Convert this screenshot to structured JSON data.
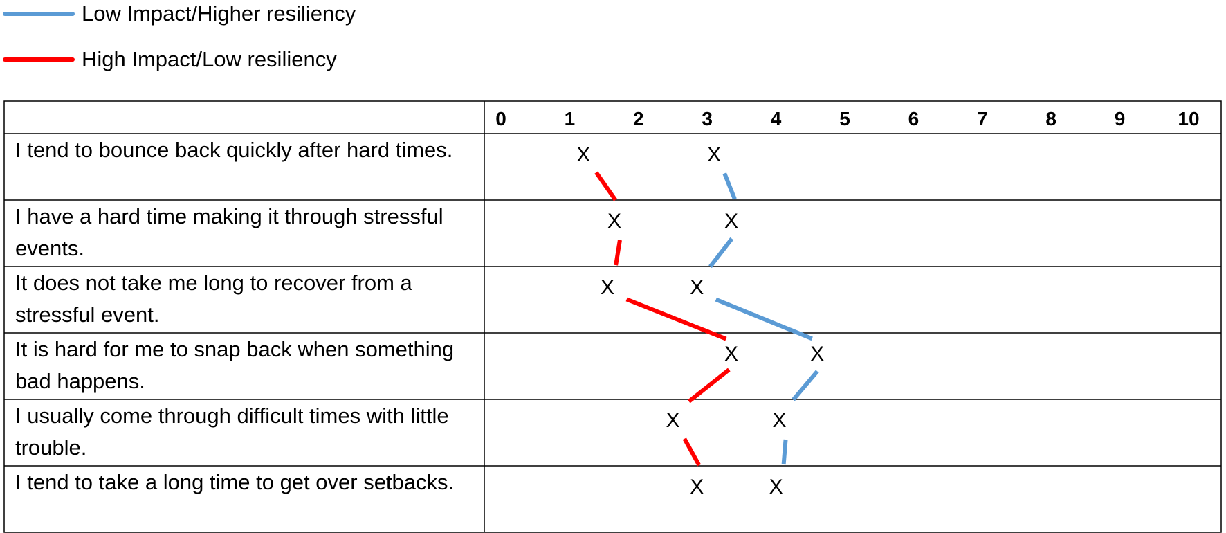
{
  "chart_data": {
    "type": "line",
    "legend": {
      "placement": "top-left",
      "entries": [
        {
          "series_index": 0
        },
        {
          "series_index": 1
        }
      ]
    },
    "categories": [
      "I tend to bounce back quickly after hard times.",
      "I have a hard time making it through stressful events.",
      "It does not take me long to recover from a stressful event.",
      "It is hard for me to snap back when something bad happens.",
      "I usually come through difficult times with little trouble.",
      "I tend to take a long time to get over setbacks."
    ],
    "x_ticks": [
      "0",
      "1",
      "2",
      "3",
      "4",
      "5",
      "6",
      "7",
      "8",
      "9",
      "10"
    ],
    "xlim": [
      0,
      10
    ],
    "marker_label": "X",
    "series": [
      {
        "name": "Low Impact/Higher resiliency",
        "color": "#5b9bd5",
        "values": [
          3.1,
          3.35,
          2.85,
          4.6,
          4.05,
          4.0
        ]
      },
      {
        "name": "High Impact/Low resiliency",
        "color": "#ff0000",
        "values": [
          1.2,
          1.65,
          1.55,
          3.35,
          2.5,
          2.85
        ]
      }
    ],
    "title": "",
    "xlabel": "",
    "ylabel": "",
    "grid": false
  }
}
